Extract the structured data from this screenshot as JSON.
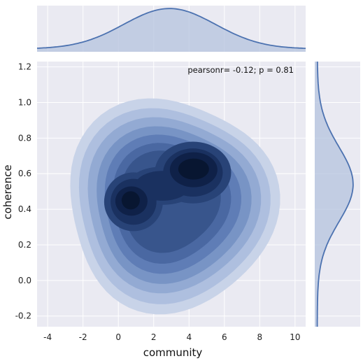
{
  "chart_data": {
    "type": "jointplot-kde",
    "xlabel": "community",
    "ylabel": "coherence",
    "annotation": "pearsonr= -0.12; p = 0.81",
    "xlim": [
      -4.6,
      10.6
    ],
    "ylim": [
      -0.26,
      1.23
    ],
    "x_ticks": [
      -4,
      -2,
      0,
      2,
      4,
      6,
      8,
      10
    ],
    "y_ticks": [
      -0.2,
      0.0,
      0.2,
      0.4,
      0.6,
      0.8,
      1.0,
      1.2
    ],
    "x_tick_labels": [
      "-4",
      "-2",
      "0",
      "2",
      "4",
      "6",
      "8",
      "10"
    ],
    "y_tick_labels": [
      "-0.2",
      "0.0",
      "0.2",
      "0.4",
      "0.6",
      "0.8",
      "1.0",
      "1.2"
    ],
    "grid": true,
    "density_peaks": [
      {
        "x": 4.3,
        "y": 0.63
      },
      {
        "x": 0.7,
        "y": 0.45
      }
    ],
    "marginal_x": {
      "peak_x": 2.9,
      "range": [
        -4.6,
        10.6
      ]
    },
    "marginal_y": {
      "peak_y": 0.54,
      "range": [
        -0.26,
        1.23
      ]
    },
    "colors": {
      "background": "#eaeaf2",
      "grid": "#ffffff",
      "line": "#4c72b0",
      "fill": "#b4c3de",
      "levels": [
        "#c8d3e8",
        "#aebfdf",
        "#93aad3",
        "#7894c5",
        "#5f7db6",
        "#4a68a2",
        "#38558c",
        "#284377",
        "#1a3160",
        "#0f2148",
        "#081631"
      ]
    }
  }
}
